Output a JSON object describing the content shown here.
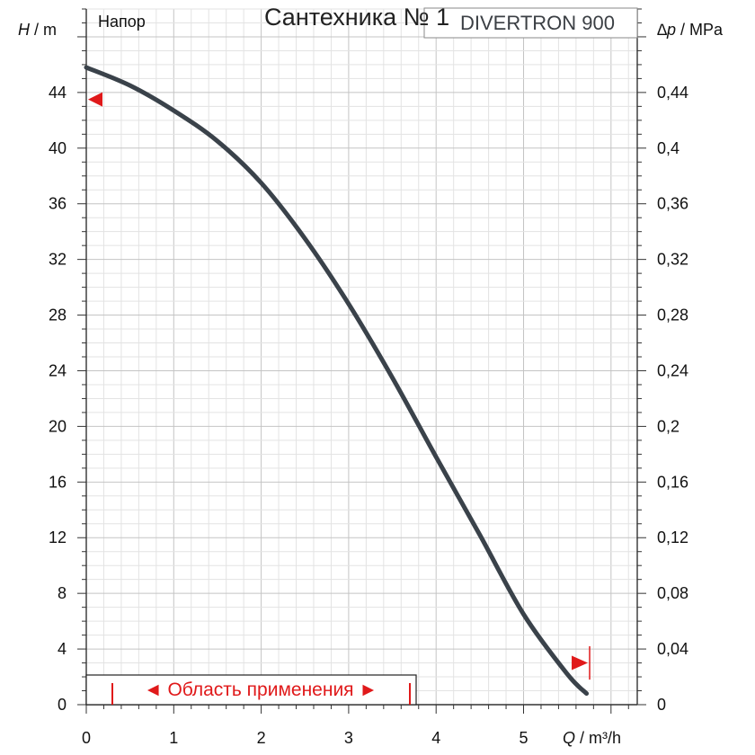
{
  "watermark": "Сантехника № 1",
  "chart_data": {
    "type": "line",
    "title": "Напор",
    "model": "DIVERTRON 900",
    "xlabel_var": "Q",
    "xlabel_unit": " / m³/h",
    "ylabel_var": "H",
    "ylabel_unit": " / m",
    "y2label_var": "∆p",
    "y2label_unit": " / MPa",
    "xlim": [
      0,
      6.3
    ],
    "ylim": [
      0,
      50
    ],
    "y2lim": [
      0,
      0.5
    ],
    "xticks": [
      "0",
      "1",
      "2",
      "3",
      "4",
      "5"
    ],
    "xtick_values": [
      0,
      1,
      2,
      3,
      4,
      5
    ],
    "yticks": [
      "0",
      "4",
      "8",
      "12",
      "16",
      "20",
      "24",
      "28",
      "32",
      "36",
      "40",
      "44"
    ],
    "ytick_values": [
      0,
      4,
      8,
      12,
      16,
      20,
      24,
      28,
      32,
      36,
      40,
      44
    ],
    "y2ticks": [
      "0",
      "0,04",
      "0,08",
      "0,12",
      "0,16",
      "0,2",
      "0,24",
      "0,28",
      "0,32",
      "0,36",
      "0,4",
      "0,44"
    ],
    "y2tick_values": [
      0,
      0.04,
      0.08,
      0.12,
      0.16,
      0.2,
      0.24,
      0.28,
      0.32,
      0.36,
      0.4,
      0.44
    ],
    "series": [
      {
        "name": "Напор",
        "color": "#3a424a",
        "x": [
          0,
          0.5,
          1.0,
          1.5,
          2.0,
          2.5,
          3.0,
          3.5,
          4.0,
          4.5,
          5.0,
          5.5,
          5.72
        ],
        "y": [
          45.8,
          44.5,
          42.7,
          40.5,
          37.5,
          33.5,
          28.8,
          23.5,
          17.8,
          12.2,
          6.5,
          2.2,
          0.8
        ]
      }
    ],
    "markers": [
      {
        "name": "h-max-marker",
        "x": 0,
        "y": 43.5,
        "direction": "left",
        "color": "#e0191a"
      },
      {
        "name": "q-max-marker",
        "x": 5.55,
        "y": 3.0,
        "direction": "right",
        "color": "#e0191a"
      }
    ],
    "application_range": {
      "label": "Область применения",
      "x_start": 0.3,
      "x_end": 3.7,
      "color": "#e0191a"
    }
  }
}
